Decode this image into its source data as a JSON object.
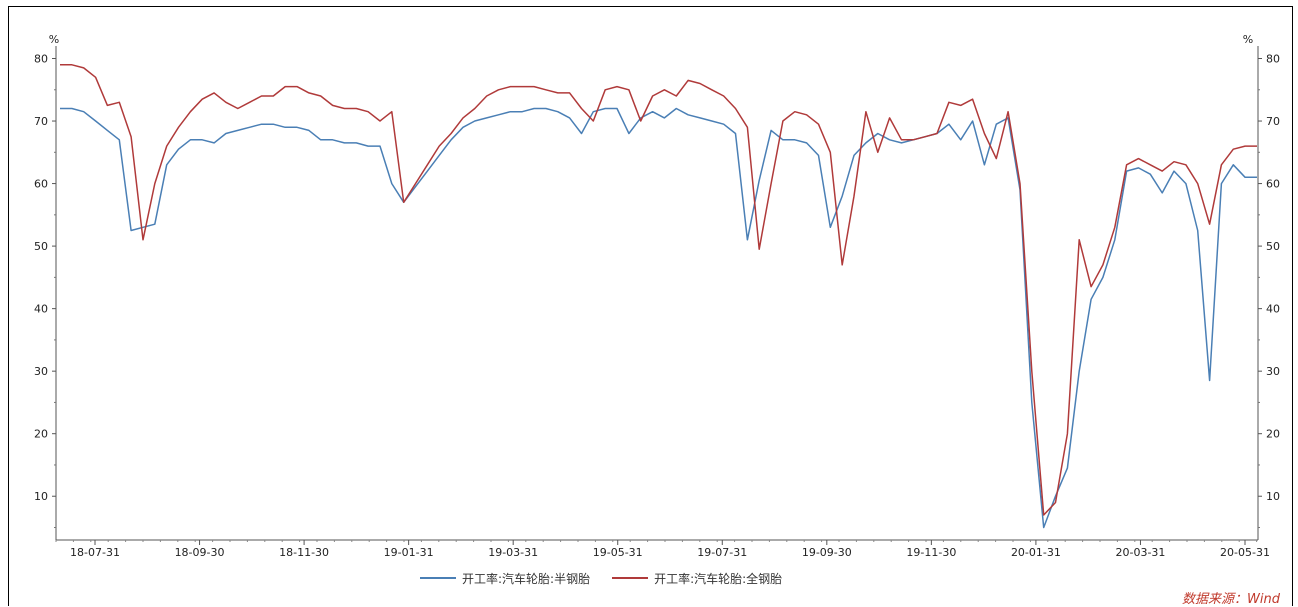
{
  "chart_data": {
    "type": "line",
    "y_unit_left": "%",
    "y_unit_right": "%",
    "ylim": [
      3,
      82
    ],
    "yticks": [
      10,
      20,
      30,
      40,
      50,
      60,
      70,
      80
    ],
    "x_tick_labels": [
      "18-07-31",
      "18-09-30",
      "18-11-30",
      "19-01-31",
      "19-03-31",
      "19-05-31",
      "19-07-31",
      "19-09-30",
      "19-11-30",
      "20-01-31",
      "20-03-31",
      "20-05-31"
    ],
    "grid": false,
    "legend_position": "bottom",
    "series": [
      {
        "name": "开工率:汽车轮胎:半钢胎",
        "color": "#4a7fb5",
        "values": [
          72,
          72,
          71.5,
          70,
          68.5,
          67,
          52.5,
          53,
          53.5,
          63,
          65.5,
          67,
          67,
          66.5,
          68,
          68.5,
          69,
          69.5,
          69.5,
          69,
          69,
          68.5,
          67,
          67,
          66.5,
          66.5,
          66,
          66,
          60,
          57,
          59.5,
          62,
          64.5,
          67,
          69,
          70,
          70.5,
          71,
          71.5,
          71.5,
          72,
          72,
          71.5,
          70.5,
          68,
          71.5,
          72,
          72,
          68,
          70.5,
          71.5,
          70.5,
          72,
          71,
          70.5,
          70,
          69.5,
          68,
          51,
          60.5,
          68.5,
          67,
          67,
          66.5,
          64.5,
          53,
          58,
          64.5,
          66.5,
          68,
          67,
          66.5,
          67,
          67.5,
          68,
          69.5,
          67,
          70,
          63,
          69.5,
          70.5,
          59,
          25,
          5,
          10,
          14.5,
          30,
          41.5,
          45,
          51,
          62,
          62.5,
          61.5,
          58.5,
          62,
          60,
          52.5,
          28.5,
          60,
          63,
          61,
          61
        ]
      },
      {
        "name": "开工率:汽车轮胎:全钢胎",
        "color": "#b03a3a",
        "values": [
          79,
          79,
          78.5,
          77,
          72.5,
          73,
          67.5,
          51,
          60,
          66,
          69,
          71.5,
          73.5,
          74.5,
          73,
          72,
          73,
          74,
          74,
          75.5,
          75.5,
          74.5,
          74,
          72.5,
          72,
          72,
          71.5,
          70,
          71.5,
          57,
          60,
          63,
          66,
          68,
          70.5,
          72,
          74,
          75,
          75.5,
          75.5,
          75.5,
          75,
          74.5,
          74.5,
          72,
          70,
          75,
          75.5,
          75,
          70,
          74,
          75,
          74,
          76.5,
          76,
          75,
          74,
          72,
          69,
          49.5,
          60,
          70,
          71.5,
          71,
          69.5,
          65,
          47,
          58,
          71.5,
          65,
          70.5,
          67,
          67,
          67.5,
          68,
          73,
          72.5,
          73.5,
          68,
          64,
          71.5,
          60,
          30,
          7,
          9,
          20,
          51,
          43.5,
          47,
          53,
          63,
          64,
          63,
          62,
          63.5,
          63,
          60,
          53.5,
          63,
          65.5,
          66,
          66
        ]
      }
    ]
  },
  "legend": {
    "item1": "开工率:汽车轮胎:半钢胎",
    "item2": "开工率:汽车轮胎:全钢胎"
  },
  "source_text": "数据来源：Wind"
}
